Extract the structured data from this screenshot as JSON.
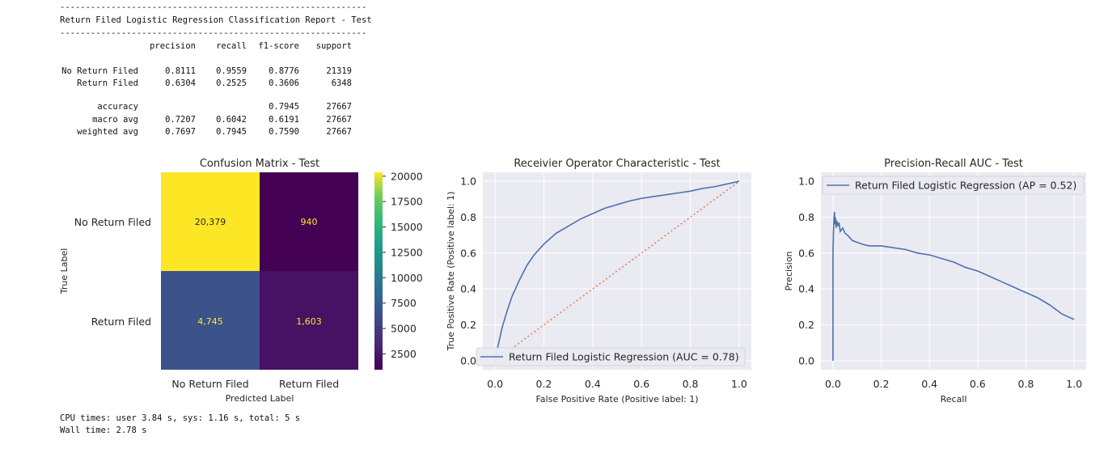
{
  "report": {
    "rule": "------------------------------------------------------------",
    "title": "Return Filed Logistic Regression Classification Report - Test",
    "headers": [
      "precision",
      "recall",
      "f1-score",
      "support"
    ],
    "rows": [
      {
        "label": "No Return Filed",
        "precision": "0.8111",
        "recall": "0.9559",
        "f1": "0.8776",
        "support": "21319"
      },
      {
        "label": "Return Filed",
        "precision": "0.6304",
        "recall": "0.2525",
        "f1": "0.3606",
        "support": "6348"
      }
    ],
    "summary": [
      {
        "label": "accuracy",
        "precision": "",
        "recall": "",
        "f1": "0.7945",
        "support": "27667"
      },
      {
        "label": "macro avg",
        "precision": "0.7207",
        "recall": "0.6042",
        "f1": "0.6191",
        "support": "27667"
      },
      {
        "label": "weighted avg",
        "precision": "0.7697",
        "recall": "0.7945",
        "f1": "0.7590",
        "support": "27667"
      }
    ]
  },
  "cpu": {
    "line1": "CPU times: user 3.84 s, sys: 1.16 s, total: 5 s",
    "line2": "Wall time: 2.78 s"
  },
  "colors": {
    "cm_high": "#fde725",
    "cm_mid_low": "#3b528b",
    "cm_low2": "#471164",
    "cm_lowest": "#440154",
    "curve": "#4c72b0",
    "chance": "#dd8452",
    "axes_bg": "#eaeaf2",
    "grid": "#ffffff"
  },
  "chart_data": [
    {
      "type": "heatmap",
      "title": "Confusion Matrix - Test",
      "xlabel": "Predicted Label",
      "ylabel": "True Label",
      "x_categories": [
        "No Return Filed",
        "Return Filed"
      ],
      "y_categories": [
        "No Return Filed",
        "Return Filed"
      ],
      "values": [
        [
          20379,
          940
        ],
        [
          4745,
          1603
        ]
      ],
      "value_labels": [
        [
          "20,379",
          "940"
        ],
        [
          "4,745",
          "1,603"
        ]
      ],
      "colorbar_ticks": [
        "20000",
        "17500",
        "15000",
        "12500",
        "10000",
        "7500",
        "5000",
        "2500"
      ],
      "colorbar_tick_values": [
        20000,
        17500,
        15000,
        12500,
        10000,
        7500,
        5000,
        2500
      ],
      "colorbar_range": [
        940,
        20379
      ]
    },
    {
      "type": "line",
      "title": "Receivier Operator Characteristic - Test",
      "xlabel": "False Positive Rate (Positive label: 1)",
      "ylabel": "True Positive Rate (Positive label: 1)",
      "xlim": [
        -0.05,
        1.05
      ],
      "ylim": [
        -0.05,
        1.05
      ],
      "xticks": [
        "0.0",
        "0.2",
        "0.4",
        "0.6",
        "0.8",
        "1.0"
      ],
      "yticks": [
        "0.0",
        "0.2",
        "0.4",
        "0.6",
        "0.8",
        "1.0"
      ],
      "grid": true,
      "legend_position": "lower-right",
      "series": [
        {
          "name": "Return Filed Logistic Regression (AUC = 0.78)",
          "x": [
            0,
            0.005,
            0.01,
            0.02,
            0.03,
            0.05,
            0.07,
            0.1,
            0.13,
            0.16,
            0.2,
            0.25,
            0.3,
            0.35,
            0.4,
            0.45,
            0.5,
            0.55,
            0.6,
            0.65,
            0.7,
            0.75,
            0.8,
            0.85,
            0.9,
            0.95,
            1.0
          ],
          "y": [
            0,
            0.03,
            0.07,
            0.13,
            0.19,
            0.28,
            0.36,
            0.45,
            0.53,
            0.59,
            0.65,
            0.71,
            0.75,
            0.79,
            0.82,
            0.85,
            0.87,
            0.89,
            0.905,
            0.915,
            0.925,
            0.935,
            0.945,
            0.96,
            0.97,
            0.985,
            1.0
          ]
        },
        {
          "x": [
            0,
            1
          ],
          "y": [
            0,
            1
          ]
        }
      ]
    },
    {
      "type": "line",
      "title": "Precision-Recall AUC - Test",
      "xlabel": "Recall",
      "ylabel": "Precision",
      "xlim": [
        -0.05,
        1.05
      ],
      "ylim": [
        -0.05,
        1.05
      ],
      "xticks": [
        "0.0",
        "0.2",
        "0.4",
        "0.6",
        "0.8",
        "1.0"
      ],
      "yticks": [
        "0.0",
        "0.2",
        "0.4",
        "0.6",
        "0.8",
        "1.0"
      ],
      "grid": true,
      "legend_position": "upper-left",
      "series": [
        {
          "name": "Return Filed Logistic Regression (AP = 0.52)",
          "x": [
            0,
            0,
            0.002,
            0.004,
            0.006,
            0.008,
            0.01,
            0.013,
            0.016,
            0.02,
            0.025,
            0.03,
            0.04,
            0.05,
            0.06,
            0.08,
            0.1,
            0.12,
            0.15,
            0.2,
            0.25,
            0.3,
            0.35,
            0.4,
            0.45,
            0.5,
            0.55,
            0.6,
            0.65,
            0.7,
            0.75,
            0.8,
            0.85,
            0.9,
            0.95,
            1.0
          ],
          "y": [
            0.0,
            0.6,
            0.72,
            0.79,
            0.83,
            0.76,
            0.8,
            0.74,
            0.78,
            0.75,
            0.77,
            0.72,
            0.74,
            0.71,
            0.7,
            0.67,
            0.66,
            0.65,
            0.64,
            0.64,
            0.63,
            0.62,
            0.6,
            0.59,
            0.57,
            0.55,
            0.52,
            0.5,
            0.47,
            0.44,
            0.41,
            0.38,
            0.35,
            0.31,
            0.26,
            0.23
          ]
        }
      ]
    }
  ]
}
